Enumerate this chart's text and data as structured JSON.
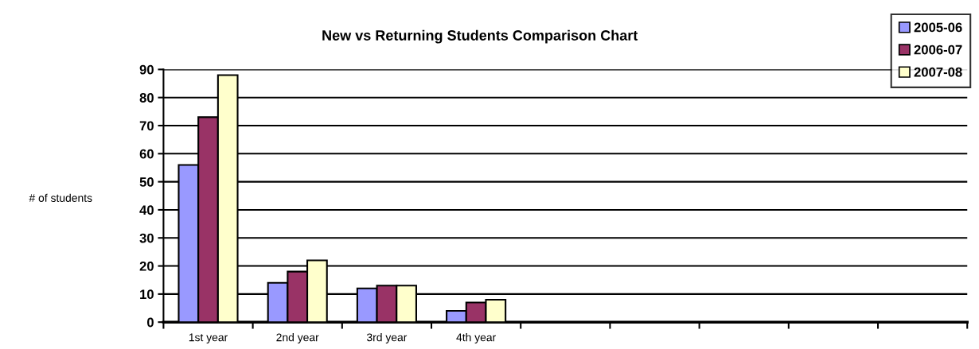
{
  "chart_data": {
    "type": "bar",
    "title": "New vs Returning Students Comparison Chart",
    "ylabel": "# of students",
    "categories": [
      "1st year",
      "2nd year",
      "3rd year",
      "4th year",
      null,
      null,
      null,
      null,
      null
    ],
    "series": [
      {
        "name": "2005-06",
        "color": "#9999ff",
        "values": [
          56,
          14,
          12,
          4,
          null,
          null,
          null,
          null,
          null
        ]
      },
      {
        "name": "2006-07",
        "color": "#993366",
        "values": [
          73,
          18,
          13,
          7,
          null,
          null,
          null,
          null,
          null
        ]
      },
      {
        "name": "2007-08",
        "color": "#ffffcc",
        "values": [
          88,
          22,
          13,
          8,
          null,
          null,
          null,
          null,
          null
        ]
      }
    ],
    "ylim": [
      0,
      90
    ],
    "yticks": [
      0,
      10,
      20,
      30,
      40,
      50,
      60,
      70,
      80,
      90
    ],
    "grid": "y",
    "legend": "top right"
  }
}
